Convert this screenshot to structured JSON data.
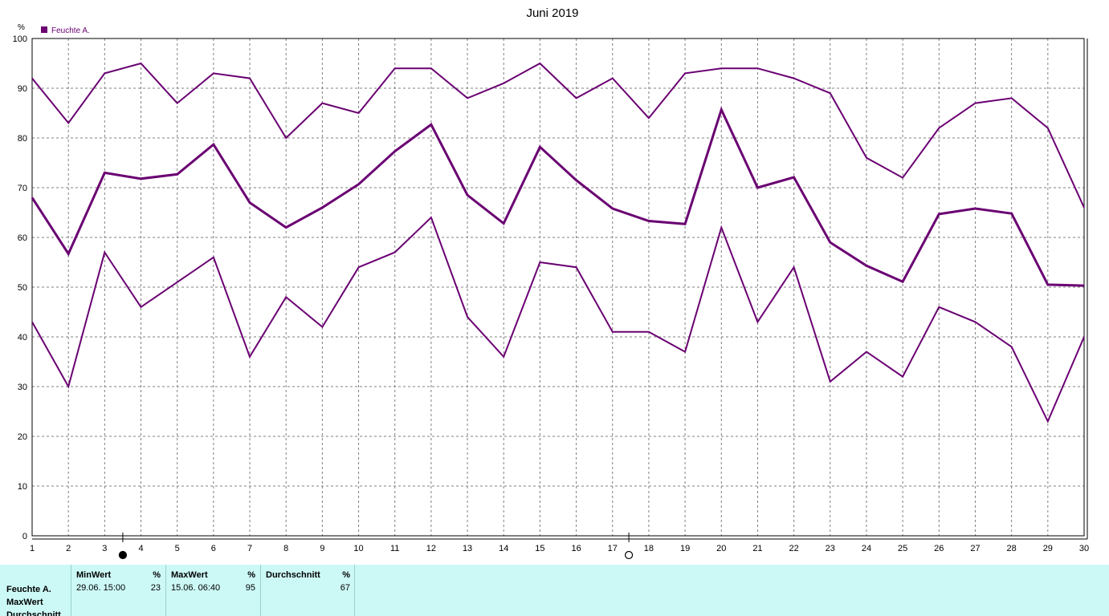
{
  "chart_data": {
    "type": "line",
    "title": "Juni 2019",
    "y_unit": "%",
    "xlim": [
      1,
      30
    ],
    "ylim": [
      0,
      100
    ],
    "x_ticks": [
      1,
      2,
      3,
      4,
      5,
      6,
      7,
      8,
      9,
      10,
      11,
      12,
      13,
      14,
      15,
      16,
      17,
      18,
      19,
      20,
      21,
      22,
      23,
      24,
      25,
      26,
      27,
      28,
      29,
      30
    ],
    "y_ticks": [
      0,
      10,
      20,
      30,
      40,
      50,
      60,
      70,
      80,
      90,
      100
    ],
    "grid": true,
    "legend_position": "top-left",
    "color": "#6a0072",
    "legend": "Feuchte A.",
    "moon_markers": [
      {
        "phase": "new",
        "x": 3.5
      },
      {
        "phase": "full",
        "x": 17.45
      }
    ],
    "series": [
      {
        "role": "max",
        "x": [
          1,
          2,
          3,
          4,
          5,
          6,
          7,
          8,
          9,
          10,
          11,
          12,
          13,
          14,
          15,
          16,
          17,
          18,
          19,
          20,
          21,
          22,
          23,
          24,
          25,
          26,
          27,
          28,
          29,
          30
        ],
        "values": [
          92,
          83,
          93,
          95,
          87,
          93,
          92,
          80,
          87,
          85,
          94,
          94,
          88,
          91,
          95,
          88,
          92,
          84,
          93,
          94,
          94,
          92,
          89,
          76,
          72,
          82,
          87,
          88,
          82,
          66
        ]
      },
      {
        "role": "avg",
        "x": [
          1,
          2,
          3,
          4,
          5,
          6,
          7,
          8,
          9,
          10,
          11,
          12,
          13,
          14,
          15,
          16,
          17,
          18,
          19,
          20,
          21,
          22,
          23,
          24,
          25,
          26,
          27,
          28,
          29,
          30
        ],
        "values": [
          68,
          56.7,
          73,
          71.8,
          72.7,
          78.7,
          67,
          62,
          66,
          70.7,
          77.3,
          82.7,
          68.5,
          62.8,
          78.2,
          71.5,
          65.8,
          63.3,
          62.7,
          85.7,
          70,
          72.1,
          59,
          54.3,
          51.1,
          64.7,
          65.8,
          64.8,
          50.5,
          50.3
        ]
      },
      {
        "role": "min",
        "x": [
          1,
          2,
          3,
          4,
          5,
          6,
          7,
          8,
          9,
          10,
          11,
          12,
          13,
          14,
          15,
          16,
          17,
          18,
          19,
          20,
          21,
          22,
          23,
          24,
          25,
          26,
          27,
          28,
          29,
          30
        ],
        "values": [
          43,
          30,
          57,
          46,
          51,
          56,
          36,
          48,
          42,
          54,
          57,
          64,
          44,
          36,
          55,
          54,
          41,
          41,
          37,
          62,
          43,
          54,
          31,
          37,
          32,
          46,
          43,
          38,
          23,
          40
        ]
      }
    ]
  },
  "stats": {
    "row_labels": [
      "Feuchte A.",
      "MaxWert",
      "Durchschnitt"
    ],
    "min": {
      "header": "MinWert",
      "unit": "%",
      "when": "29.06.  15:00",
      "value": "23"
    },
    "max": {
      "header": "MaxWert",
      "unit": "%",
      "when": "15.06.  06:40",
      "value": "95"
    },
    "avg": {
      "header": "Durchschnitt",
      "unit": "%",
      "value": "67"
    }
  }
}
